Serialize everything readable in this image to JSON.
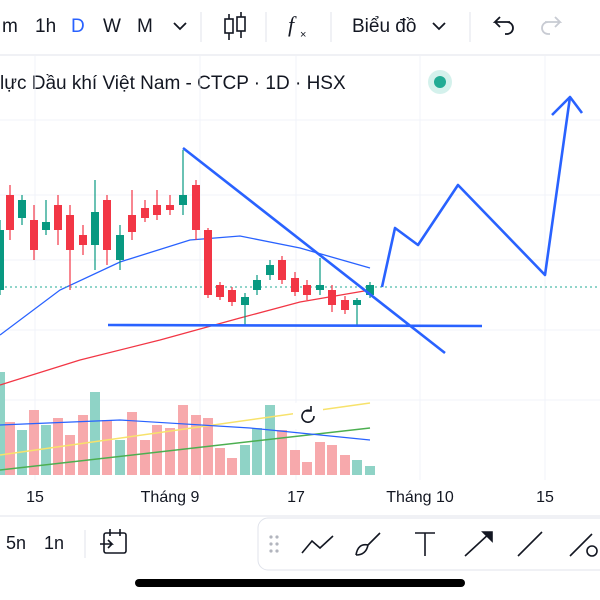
{
  "toolbar": {
    "intervals": [
      "m",
      "1h",
      "D",
      "W",
      "M"
    ],
    "chart_menu": "Biểu đồ"
  },
  "title": "lực Dầu khí Việt Nam - CTCP · 1D · HSX",
  "x_axis_labels": [
    "15",
    "Tháng 9",
    "17",
    "Tháng 10",
    "15"
  ],
  "bottom_bar": {
    "ranges": [
      "5n",
      "1n"
    ]
  }
}
